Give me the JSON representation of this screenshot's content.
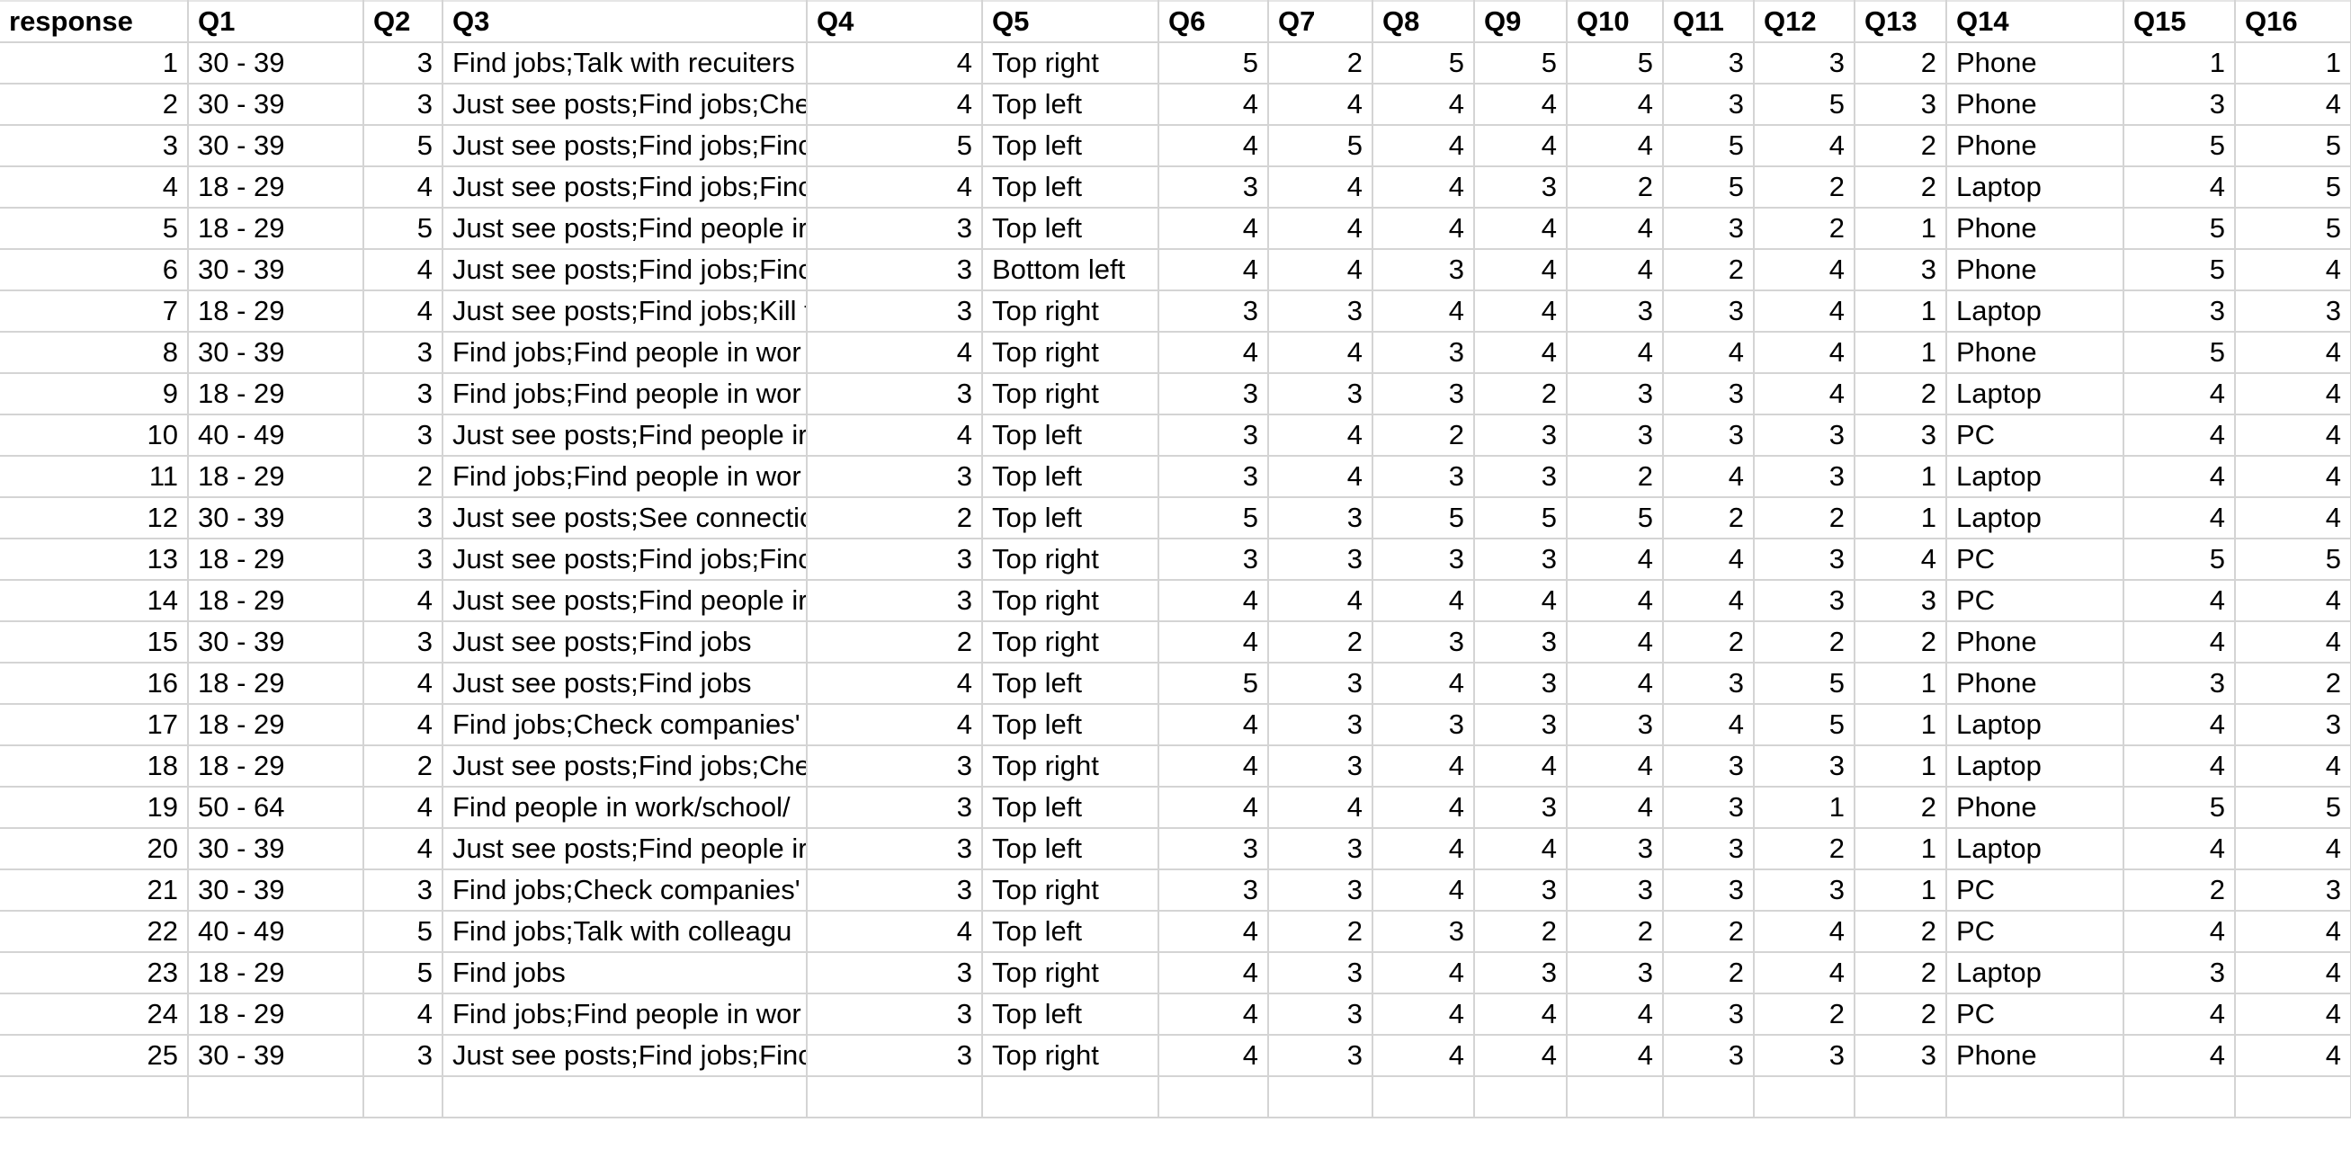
{
  "columns": [
    "response",
    "Q1",
    "Q2",
    "Q3",
    "Q4",
    "Q5",
    "Q6",
    "Q7",
    "Q8",
    "Q9",
    "Q10",
    "Q11",
    "Q12",
    "Q13",
    "Q14",
    "Q15",
    "Q16"
  ],
  "rows": [
    [
      "1",
      "30 - 39",
      "3",
      "Find jobs;Talk with recuiters",
      "4",
      "Top right",
      "5",
      "2",
      "5",
      "5",
      "5",
      "3",
      "3",
      "2",
      "Phone",
      "1",
      "1"
    ],
    [
      "2",
      "30 - 39",
      "3",
      "Just see posts;Find jobs;Che",
      "4",
      "Top left",
      "4",
      "4",
      "4",
      "4",
      "4",
      "3",
      "5",
      "3",
      "Phone",
      "3",
      "4"
    ],
    [
      "3",
      "30 - 39",
      "5",
      "Just see posts;Find jobs;Finc",
      "5",
      "Top left",
      "4",
      "5",
      "4",
      "4",
      "4",
      "5",
      "4",
      "2",
      "Phone",
      "5",
      "5"
    ],
    [
      "4",
      "18 - 29",
      "4",
      "Just see posts;Find jobs;Finc",
      "4",
      "Top left",
      "3",
      "4",
      "4",
      "3",
      "2",
      "5",
      "2",
      "2",
      "Laptop",
      "4",
      "5"
    ],
    [
      "5",
      "18 - 29",
      "5",
      "Just see posts;Find people ir",
      "3",
      "Top left",
      "4",
      "4",
      "4",
      "4",
      "4",
      "3",
      "2",
      "1",
      "Phone",
      "5",
      "5"
    ],
    [
      "6",
      "30 - 39",
      "4",
      "Just see posts;Find jobs;Finc",
      "3",
      "Bottom left",
      "4",
      "4",
      "3",
      "4",
      "4",
      "2",
      "4",
      "3",
      "Phone",
      "5",
      "4"
    ],
    [
      "7",
      "18 - 29",
      "4",
      "Just see posts;Find jobs;Kill t",
      "3",
      "Top right",
      "3",
      "3",
      "4",
      "4",
      "3",
      "3",
      "4",
      "1",
      "Laptop",
      "3",
      "3"
    ],
    [
      "8",
      "30 - 39",
      "3",
      "Find jobs;Find people in wor",
      "4",
      "Top right",
      "4",
      "4",
      "3",
      "4",
      "4",
      "4",
      "4",
      "1",
      "Phone",
      "5",
      "4"
    ],
    [
      "9",
      "18 - 29",
      "3",
      "Find jobs;Find people in wor",
      "3",
      "Top right",
      "3",
      "3",
      "3",
      "2",
      "3",
      "3",
      "4",
      "2",
      "Laptop",
      "4",
      "4"
    ],
    [
      "10",
      "40 - 49",
      "3",
      "Just see posts;Find people ir",
      "4",
      "Top left",
      "3",
      "4",
      "2",
      "3",
      "3",
      "3",
      "3",
      "3",
      "PC",
      "4",
      "4"
    ],
    [
      "11",
      "18 - 29",
      "2",
      "Find jobs;Find people in wor",
      "3",
      "Top left",
      "3",
      "4",
      "3",
      "3",
      "2",
      "4",
      "3",
      "1",
      "Laptop",
      "4",
      "4"
    ],
    [
      "12",
      "30 - 39",
      "3",
      "Just see posts;See connectic",
      "2",
      "Top left",
      "5",
      "3",
      "5",
      "5",
      "5",
      "2",
      "2",
      "1",
      "Laptop",
      "4",
      "4"
    ],
    [
      "13",
      "18 - 29",
      "3",
      "Just see posts;Find jobs;Finc",
      "3",
      "Top right",
      "3",
      "3",
      "3",
      "3",
      "4",
      "4",
      "3",
      "4",
      "PC",
      "5",
      "5"
    ],
    [
      "14",
      "18 - 29",
      "4",
      "Just see posts;Find people ir",
      "3",
      "Top right",
      "4",
      "4",
      "4",
      "4",
      "4",
      "4",
      "3",
      "3",
      "PC",
      "4",
      "4"
    ],
    [
      "15",
      "30 - 39",
      "3",
      "Just see posts;Find jobs",
      "2",
      "Top right",
      "4",
      "2",
      "3",
      "3",
      "4",
      "2",
      "2",
      "2",
      "Phone",
      "4",
      "4"
    ],
    [
      "16",
      "18 - 29",
      "4",
      "Just see posts;Find jobs",
      "4",
      "Top left",
      "5",
      "3",
      "4",
      "3",
      "4",
      "3",
      "5",
      "1",
      "Phone",
      "3",
      "2"
    ],
    [
      "17",
      "18 - 29",
      "4",
      "Find jobs;Check companies'",
      "4",
      "Top left",
      "4",
      "3",
      "3",
      "3",
      "3",
      "4",
      "5",
      "1",
      "Laptop",
      "4",
      "3"
    ],
    [
      "18",
      "18 - 29",
      "2",
      "Just see posts;Find jobs;Che",
      "3",
      "Top right",
      "4",
      "3",
      "4",
      "4",
      "4",
      "3",
      "3",
      "1",
      "Laptop",
      "4",
      "4"
    ],
    [
      "19",
      "50 - 64",
      "4",
      "Find people in work/school/",
      "3",
      "Top left",
      "4",
      "4",
      "4",
      "3",
      "4",
      "3",
      "1",
      "2",
      "Phone",
      "5",
      "5"
    ],
    [
      "20",
      "30 - 39",
      "4",
      "Just see posts;Find people ir",
      "3",
      "Top left",
      "3",
      "3",
      "4",
      "4",
      "3",
      "3",
      "2",
      "1",
      "Laptop",
      "4",
      "4"
    ],
    [
      "21",
      "30 - 39",
      "3",
      "Find jobs;Check companies'",
      "3",
      "Top right",
      "3",
      "3",
      "4",
      "3",
      "3",
      "3",
      "3",
      "1",
      "PC",
      "2",
      "3"
    ],
    [
      "22",
      "40 - 49",
      "5",
      "Find jobs;Talk with colleagu",
      "4",
      "Top left",
      "4",
      "2",
      "3",
      "2",
      "2",
      "2",
      "4",
      "2",
      "PC",
      "4",
      "4"
    ],
    [
      "23",
      "18 - 29",
      "5",
      "Find jobs",
      "3",
      "Top right",
      "4",
      "3",
      "4",
      "3",
      "3",
      "2",
      "4",
      "2",
      "Laptop",
      "3",
      "4"
    ],
    [
      "24",
      "18 - 29",
      "4",
      "Find jobs;Find people in wor",
      "3",
      "Top left",
      "4",
      "3",
      "4",
      "4",
      "4",
      "3",
      "2",
      "2",
      "PC",
      "4",
      "4"
    ],
    [
      "25",
      "30 - 39",
      "3",
      "Just see posts;Find jobs;Finc",
      "3",
      "Top right",
      "4",
      "3",
      "4",
      "4",
      "4",
      "3",
      "3",
      "3",
      "Phone",
      "4",
      "4"
    ]
  ]
}
